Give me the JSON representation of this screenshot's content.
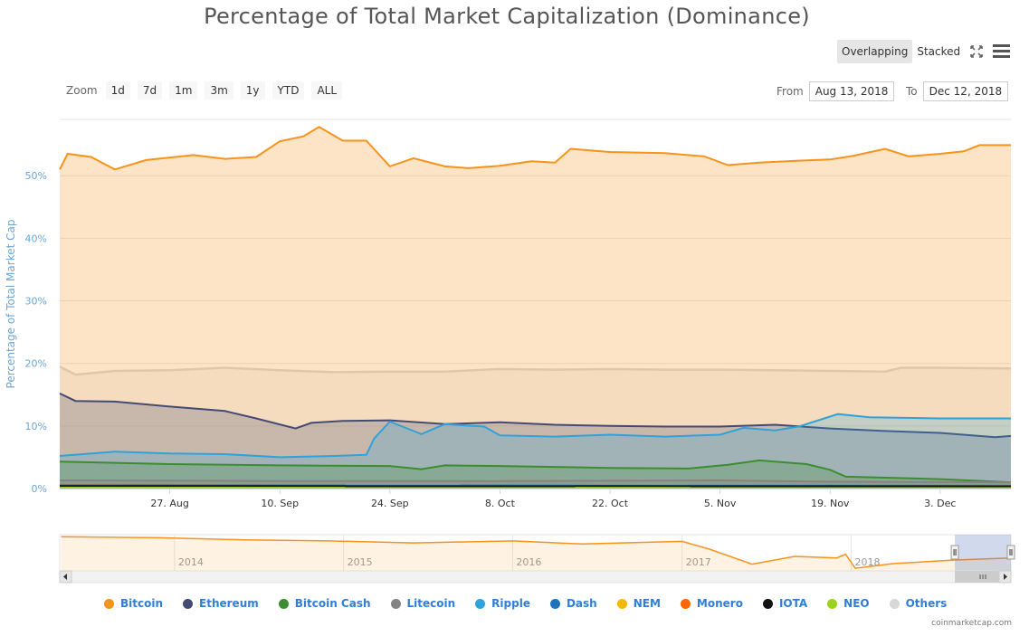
{
  "title": "Percentage of Total Market Capitalization (Dominance)",
  "mode_buttons": {
    "overlapping": "Overlapping",
    "stacked": "Stacked"
  },
  "icons": {
    "fullscreen": "fullscreen-icon",
    "menu": "hamburger-menu-icon"
  },
  "zoom": {
    "label": "Zoom",
    "buttons": [
      "1d",
      "7d",
      "1m",
      "3m",
      "1y",
      "YTD",
      "ALL"
    ]
  },
  "range": {
    "from_label": "From",
    "from_value": "Aug 13, 2018",
    "to_label": "To",
    "to_value": "Dec 12, 2018"
  },
  "credit": "coinmarketcap.com",
  "colors": {
    "Bitcoin": "#f7931a",
    "Ethereum": "#454a75",
    "Bitcoin Cash": "#3c8d2f",
    "Litecoin": "#838383",
    "Ripple": "#2ea2db",
    "Dash": "#1c75bc",
    "NEM": "#f5b800",
    "Monero": "#ff6600",
    "IOTA": "#111111",
    "NEO": "#9cd21c",
    "Others": "#d8d8d8"
  },
  "chart_data": {
    "type": "area",
    "title": "Percentage of Total Market Capitalization (Dominance)",
    "ylabel": "Percentage of Total Market Cap",
    "ylim": [
      0,
      59
    ],
    "yticks": [
      0,
      10,
      20,
      30,
      40,
      50
    ],
    "ytick_labels": [
      "0%",
      "10%",
      "20%",
      "30%",
      "40%",
      "50%"
    ],
    "x_range": [
      "2018-08-13",
      "2018-12-12"
    ],
    "xtick_labels": [
      "27. Aug",
      "10. Sep",
      "24. Sep",
      "8. Oct",
      "22. Oct",
      "5. Nov",
      "19. Nov",
      "3. Dec"
    ],
    "xtick_dates": [
      "2018-08-27",
      "2018-09-10",
      "2018-09-24",
      "2018-10-08",
      "2018-10-22",
      "2018-11-05",
      "2018-11-19",
      "2018-12-03"
    ],
    "grid": true,
    "legend_position": "bottom",
    "series": [
      {
        "name": "Others",
        "points": [
          [
            "2018-08-13",
            19.5
          ],
          [
            "2018-08-15",
            18.2
          ],
          [
            "2018-08-20",
            18.8
          ],
          [
            "2018-08-27",
            18.9
          ],
          [
            "2018-09-03",
            19.3
          ],
          [
            "2018-09-10",
            18.9
          ],
          [
            "2018-09-17",
            18.6
          ],
          [
            "2018-09-24",
            18.7
          ],
          [
            "2018-10-01",
            18.7
          ],
          [
            "2018-10-08",
            19.1
          ],
          [
            "2018-10-15",
            19.0
          ],
          [
            "2018-10-22",
            19.1
          ],
          [
            "2018-10-29",
            19.0
          ],
          [
            "2018-11-05",
            19.0
          ],
          [
            "2018-11-12",
            18.9
          ],
          [
            "2018-11-19",
            18.8
          ],
          [
            "2018-11-26",
            18.7
          ],
          [
            "2018-11-28",
            19.3
          ],
          [
            "2018-12-03",
            19.3
          ],
          [
            "2018-12-12",
            19.2
          ]
        ]
      },
      {
        "name": "Bitcoin",
        "points": [
          [
            "2018-08-13",
            51.0
          ],
          [
            "2018-08-14",
            53.5
          ],
          [
            "2018-08-17",
            53.0
          ],
          [
            "2018-08-20",
            51.0
          ],
          [
            "2018-08-24",
            52.5
          ],
          [
            "2018-08-30",
            53.3
          ],
          [
            "2018-09-03",
            52.7
          ],
          [
            "2018-09-07",
            53.0
          ],
          [
            "2018-09-10",
            55.5
          ],
          [
            "2018-09-13",
            56.3
          ],
          [
            "2018-09-15",
            57.8
          ],
          [
            "2018-09-18",
            55.6
          ],
          [
            "2018-09-21",
            55.6
          ],
          [
            "2018-09-24",
            51.5
          ],
          [
            "2018-09-27",
            52.8
          ],
          [
            "2018-10-01",
            51.5
          ],
          [
            "2018-10-04",
            51.2
          ],
          [
            "2018-10-08",
            51.6
          ],
          [
            "2018-10-12",
            52.3
          ],
          [
            "2018-10-15",
            52.1
          ],
          [
            "2018-10-17",
            54.3
          ],
          [
            "2018-10-22",
            53.8
          ],
          [
            "2018-10-29",
            53.6
          ],
          [
            "2018-11-03",
            53.1
          ],
          [
            "2018-11-06",
            51.7
          ],
          [
            "2018-11-10",
            52.1
          ],
          [
            "2018-11-15",
            52.4
          ],
          [
            "2018-11-19",
            52.6
          ],
          [
            "2018-11-22",
            53.2
          ],
          [
            "2018-11-26",
            54.3
          ],
          [
            "2018-11-29",
            53.1
          ],
          [
            "2018-12-03",
            53.5
          ],
          [
            "2018-12-06",
            53.9
          ],
          [
            "2018-12-08",
            54.9
          ],
          [
            "2018-12-12",
            54.9
          ]
        ]
      },
      {
        "name": "Ethereum",
        "points": [
          [
            "2018-08-13",
            15.2
          ],
          [
            "2018-08-15",
            14.0
          ],
          [
            "2018-08-20",
            13.9
          ],
          [
            "2018-08-27",
            13.1
          ],
          [
            "2018-09-03",
            12.4
          ],
          [
            "2018-09-07",
            11.2
          ],
          [
            "2018-09-12",
            9.6
          ],
          [
            "2018-09-14",
            10.5
          ],
          [
            "2018-09-18",
            10.8
          ],
          [
            "2018-09-24",
            10.9
          ],
          [
            "2018-10-01",
            10.3
          ],
          [
            "2018-10-08",
            10.6
          ],
          [
            "2018-10-15",
            10.2
          ],
          [
            "2018-10-22",
            10.0
          ],
          [
            "2018-10-29",
            9.9
          ],
          [
            "2018-11-05",
            9.9
          ],
          [
            "2018-11-12",
            10.2
          ],
          [
            "2018-11-19",
            9.6
          ],
          [
            "2018-11-26",
            9.2
          ],
          [
            "2018-12-03",
            8.9
          ],
          [
            "2018-12-10",
            8.2
          ],
          [
            "2018-12-12",
            8.4
          ]
        ]
      },
      {
        "name": "Ripple",
        "points": [
          [
            "2018-08-13",
            5.2
          ],
          [
            "2018-08-20",
            5.9
          ],
          [
            "2018-08-27",
            5.6
          ],
          [
            "2018-09-03",
            5.5
          ],
          [
            "2018-09-10",
            5.0
          ],
          [
            "2018-09-17",
            5.2
          ],
          [
            "2018-09-21",
            5.4
          ],
          [
            "2018-09-22",
            8.0
          ],
          [
            "2018-09-24",
            10.7
          ],
          [
            "2018-09-28",
            8.7
          ],
          [
            "2018-10-01",
            10.3
          ],
          [
            "2018-10-06",
            9.9
          ],
          [
            "2018-10-08",
            8.5
          ],
          [
            "2018-10-15",
            8.3
          ],
          [
            "2018-10-22",
            8.6
          ],
          [
            "2018-10-29",
            8.3
          ],
          [
            "2018-11-05",
            8.6
          ],
          [
            "2018-11-08",
            9.7
          ],
          [
            "2018-11-12",
            9.3
          ],
          [
            "2018-11-15",
            9.9
          ],
          [
            "2018-11-20",
            11.9
          ],
          [
            "2018-11-24",
            11.4
          ],
          [
            "2018-12-03",
            11.2
          ],
          [
            "2018-12-12",
            11.2
          ]
        ]
      },
      {
        "name": "Bitcoin Cash",
        "points": [
          [
            "2018-08-13",
            4.3
          ],
          [
            "2018-08-27",
            3.9
          ],
          [
            "2018-09-10",
            3.7
          ],
          [
            "2018-09-24",
            3.6
          ],
          [
            "2018-09-28",
            3.1
          ],
          [
            "2018-10-01",
            3.7
          ],
          [
            "2018-10-08",
            3.6
          ],
          [
            "2018-10-22",
            3.3
          ],
          [
            "2018-11-01",
            3.2
          ],
          [
            "2018-11-06",
            3.8
          ],
          [
            "2018-11-10",
            4.5
          ],
          [
            "2018-11-16",
            3.9
          ],
          [
            "2018-11-19",
            3.0
          ],
          [
            "2018-11-21",
            1.9
          ],
          [
            "2018-12-03",
            1.5
          ],
          [
            "2018-12-12",
            1.0
          ]
        ]
      },
      {
        "name": "Litecoin",
        "points": [
          [
            "2018-08-13",
            1.3
          ],
          [
            "2018-09-10",
            1.2
          ],
          [
            "2018-10-08",
            1.2
          ],
          [
            "2018-11-05",
            1.3
          ],
          [
            "2018-11-19",
            1.1
          ],
          [
            "2018-12-12",
            1.0
          ]
        ]
      },
      {
        "name": "Monero",
        "points": [
          [
            "2018-08-13",
            0.6
          ],
          [
            "2018-12-12",
            0.5
          ]
        ]
      },
      {
        "name": "NEM",
        "points": [
          [
            "2018-08-13",
            0.3
          ],
          [
            "2018-12-12",
            0.3
          ]
        ]
      },
      {
        "name": "Dash",
        "points": [
          [
            "2018-08-13",
            0.5
          ],
          [
            "2018-12-12",
            0.4
          ]
        ]
      },
      {
        "name": "IOTA",
        "points": [
          [
            "2018-08-13",
            0.4
          ],
          [
            "2018-12-12",
            0.35
          ]
        ]
      },
      {
        "name": "NEO",
        "points": [
          [
            "2018-08-13",
            0.15
          ],
          [
            "2018-12-12",
            0.1
          ]
        ]
      }
    ],
    "navigator": {
      "year_labels": [
        "2014",
        "2015",
        "2016",
        "2017",
        "2018"
      ],
      "year_dates": [
        "2014-01-01",
        "2015-01-01",
        "2016-01-01",
        "2017-01-01",
        "2018-01-01"
      ],
      "x_range": [
        "2013-04-28",
        "2018-12-12"
      ],
      "selection": [
        "2018-08-13",
        "2018-12-12"
      ],
      "ylim": [
        30,
        100
      ],
      "series_name": "Bitcoin",
      "points": [
        [
          "2013-05-01",
          96
        ],
        [
          "2013-12-01",
          94
        ],
        [
          "2014-06-01",
          90
        ],
        [
          "2014-12-01",
          88
        ],
        [
          "2015-06-01",
          84
        ],
        [
          "2016-01-01",
          88
        ],
        [
          "2016-06-01",
          82
        ],
        [
          "2017-01-01",
          87
        ],
        [
          "2017-03-01",
          72
        ],
        [
          "2017-06-01",
          43
        ],
        [
          "2017-09-01",
          58
        ],
        [
          "2017-12-01",
          55
        ],
        [
          "2017-12-20",
          62
        ],
        [
          "2018-01-10",
          35
        ],
        [
          "2018-04-01",
          44
        ],
        [
          "2018-08-13",
          51
        ],
        [
          "2018-12-12",
          55
        ]
      ]
    },
    "legend": [
      "Bitcoin",
      "Ethereum",
      "Bitcoin Cash",
      "Litecoin",
      "Ripple",
      "Dash",
      "NEM",
      "Monero",
      "IOTA",
      "NEO",
      "Others"
    ]
  }
}
